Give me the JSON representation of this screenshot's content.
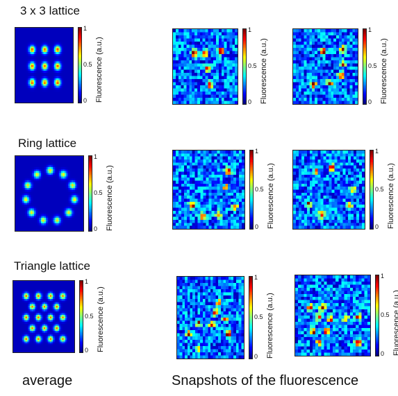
{
  "rows": [
    {
      "title": "3 x 3 lattice"
    },
    {
      "title": "Ring lattice"
    },
    {
      "title": "Triangle lattice"
    }
  ],
  "colorbar": {
    "label": "Fluorescence (a.u.)",
    "ticks": [
      "1",
      "0.5",
      "0"
    ],
    "colormap": "jet"
  },
  "footer": {
    "average_label": "average",
    "snapshots_label": "Snapshots of the fluorescence"
  }
}
